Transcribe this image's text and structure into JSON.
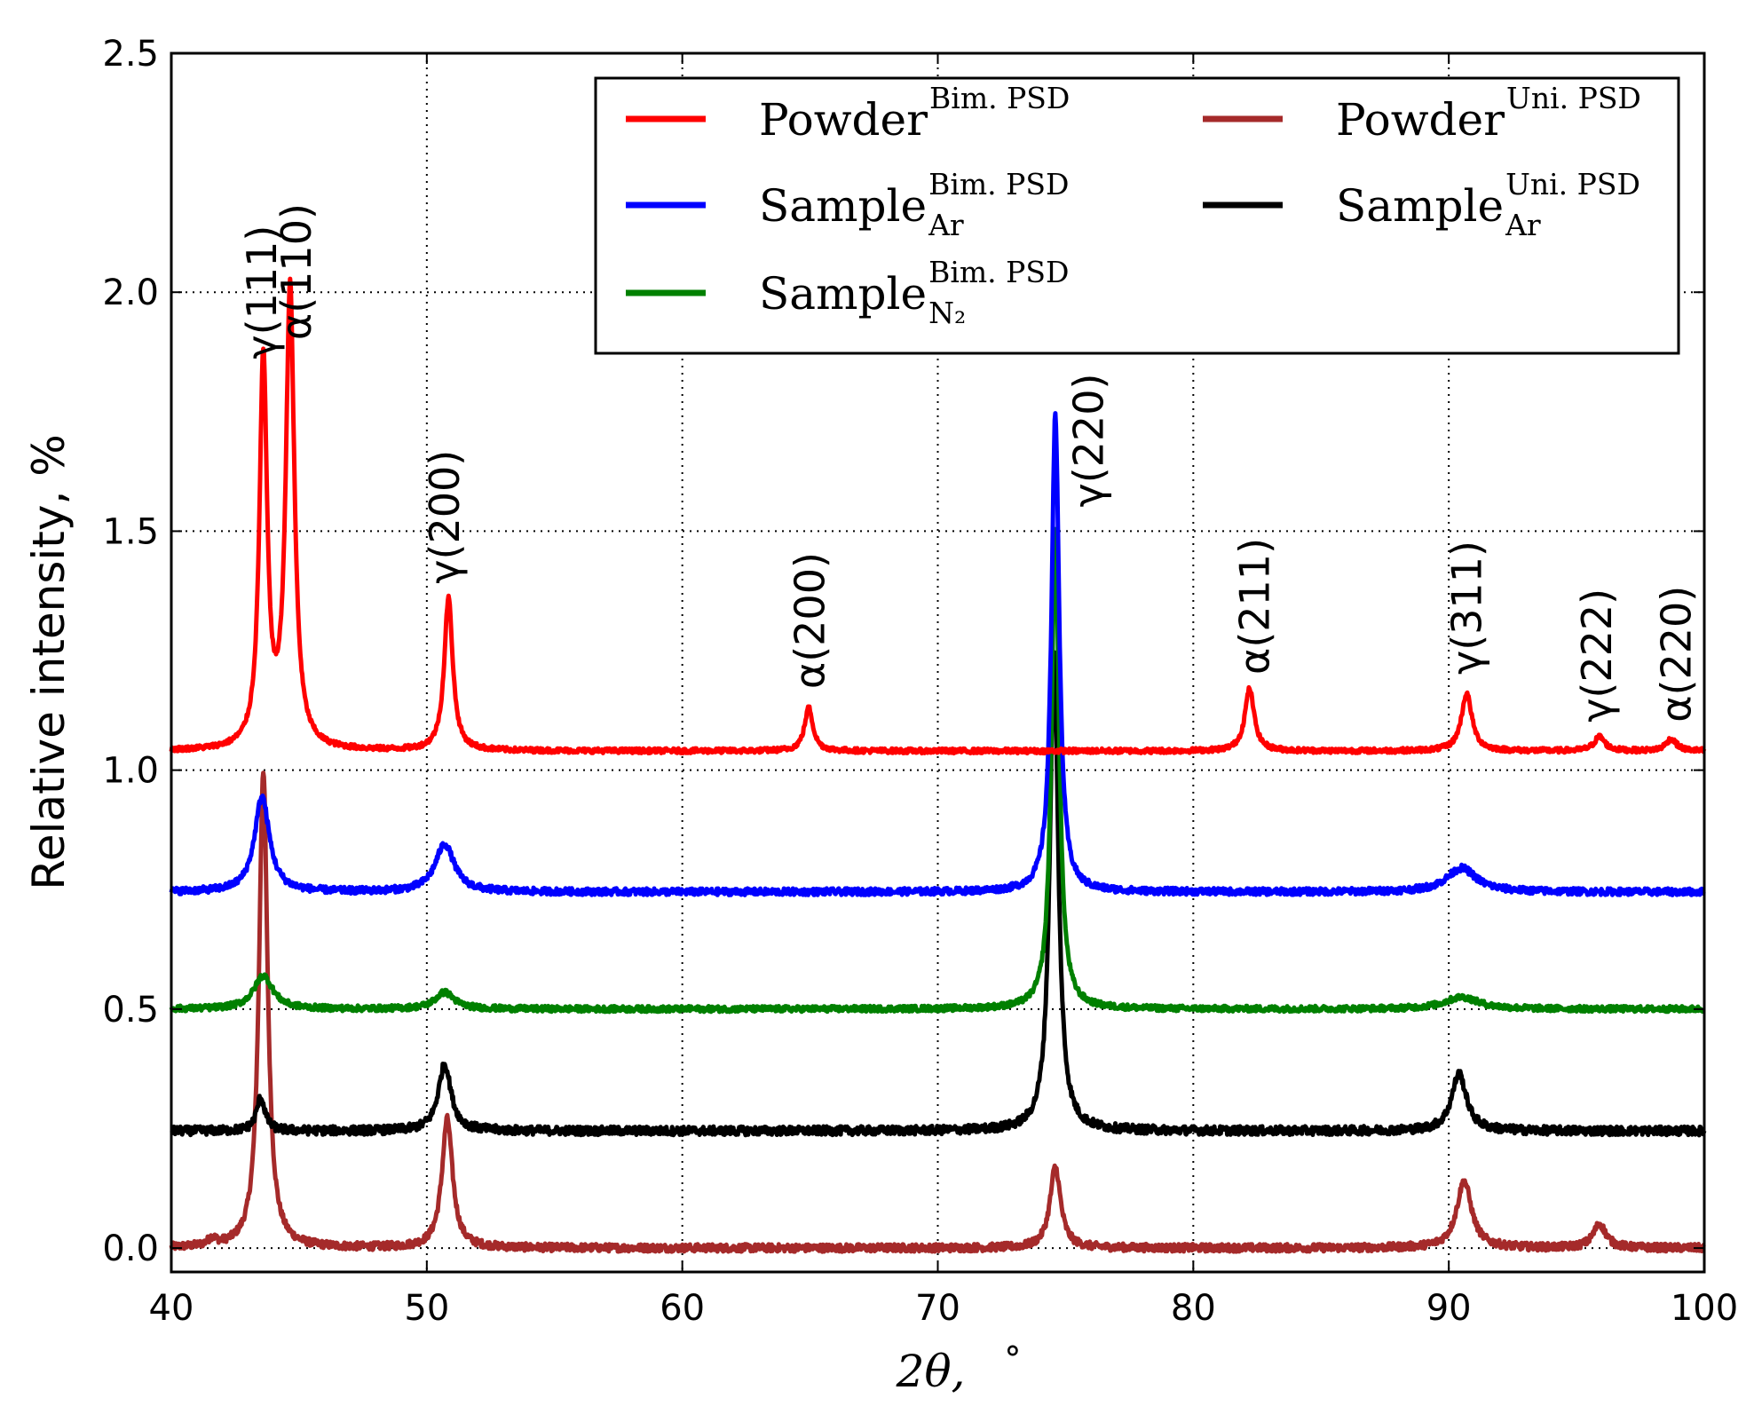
{
  "chart_data": {
    "type": "line",
    "title": "",
    "xlabel": "2θ, °",
    "xlabel_parts": {
      "var": "2θ,",
      "unit": "°"
    },
    "ylabel": "Relative intensity, %",
    "xlim": [
      40,
      100
    ],
    "ylim": [
      -0.05,
      2.5
    ],
    "xticks": [
      40,
      50,
      60,
      70,
      80,
      90,
      100
    ],
    "xtick_labels": [
      "40",
      "50",
      "60",
      "70",
      "80",
      "90",
      "100"
    ],
    "yticks": [
      0.0,
      0.5,
      1.0,
      1.5,
      2.0,
      2.5
    ],
    "ytick_labels": [
      "0.0",
      "0.5",
      "1.0",
      "1.5",
      "2.0",
      "2.5"
    ],
    "grid": "dotted, major ticks",
    "legend_position": "top-right",
    "series": [
      {
        "name": "Powder Bim. PSD",
        "legend": {
          "main": "Powder",
          "sup": "Bim. PSD",
          "sub": ""
        },
        "color": "#ff0000",
        "baseline": 1.04,
        "noise": 0.005,
        "peaks": [
          {
            "x": 43.6,
            "height": 0.81,
            "width": 0.18
          },
          {
            "x": 44.65,
            "height": 0.96,
            "width": 0.2
          },
          {
            "x": 50.85,
            "height": 0.32,
            "width": 0.2
          },
          {
            "x": 64.95,
            "height": 0.09,
            "width": 0.2
          },
          {
            "x": 82.2,
            "height": 0.13,
            "width": 0.22
          },
          {
            "x": 90.7,
            "height": 0.12,
            "width": 0.25
          },
          {
            "x": 95.9,
            "height": 0.03,
            "width": 0.25
          },
          {
            "x": 98.7,
            "height": 0.025,
            "width": 0.25
          }
        ]
      },
      {
        "name": "Sample Ar Bim. PSD",
        "legend": {
          "main": "Sample",
          "sup": "Bim. PSD",
          "sub": "Ar"
        },
        "color": "#0000ff",
        "baseline": 0.745,
        "noise": 0.007,
        "peaks": [
          {
            "x": 43.55,
            "height": 0.2,
            "width": 0.35
          },
          {
            "x": 50.7,
            "height": 0.1,
            "width": 0.45
          },
          {
            "x": 74.6,
            "height": 1.0,
            "width": 0.18
          },
          {
            "x": 90.5,
            "height": 0.05,
            "width": 0.7
          }
        ]
      },
      {
        "name": "Sample N2 Bim. PSD",
        "legend": {
          "main": "Sample",
          "sup": "Bim. PSD",
          "sub": "N₂"
        },
        "color": "#008000",
        "baseline": 0.5,
        "noise": 0.006,
        "peaks": [
          {
            "x": 43.6,
            "height": 0.07,
            "width": 0.45
          },
          {
            "x": 50.7,
            "height": 0.035,
            "width": 0.45
          },
          {
            "x": 74.6,
            "height": 1.0,
            "width": 0.18
          },
          {
            "x": 90.5,
            "height": 0.025,
            "width": 0.8
          }
        ]
      },
      {
        "name": "Powder Uni. PSD",
        "legend": {
          "main": "Powder",
          "sup": "Uni. PSD",
          "sub": ""
        },
        "color": "#a52a2a",
        "baseline": 0.0,
        "noise": 0.008,
        "peaks": [
          {
            "x": 41.6,
            "height": 0.015,
            "width": 0.2
          },
          {
            "x": 43.6,
            "height": 1.0,
            "width": 0.2
          },
          {
            "x": 50.8,
            "height": 0.27,
            "width": 0.25
          },
          {
            "x": 74.6,
            "height": 0.17,
            "width": 0.25
          },
          {
            "x": 90.6,
            "height": 0.14,
            "width": 0.35
          },
          {
            "x": 95.9,
            "height": 0.05,
            "width": 0.3
          }
        ]
      },
      {
        "name": "Sample Ar Uni. PSD",
        "legend": {
          "main": "Sample",
          "sup": "Uni. PSD",
          "sub": "Ar"
        },
        "color": "#000000",
        "baseline": 0.245,
        "noise": 0.009,
        "peaks": [
          {
            "x": 43.5,
            "height": 0.07,
            "width": 0.2
          },
          {
            "x": 50.7,
            "height": 0.14,
            "width": 0.3
          },
          {
            "x": 74.55,
            "height": 1.0,
            "width": 0.2
          },
          {
            "x": 90.4,
            "height": 0.12,
            "width": 0.35
          }
        ]
      }
    ],
    "annotations": [
      {
        "text": "γ(111)",
        "x": 43.55,
        "y": 1.86
      },
      {
        "text": "α(110)",
        "x": 44.9,
        "y": 1.9
      },
      {
        "text": "γ(200)",
        "x": 50.7,
        "y": 1.39
      },
      {
        "text": "α(200)",
        "x": 65.0,
        "y": 1.17
      },
      {
        "text": "γ(220)",
        "x": 75.9,
        "y": 1.55
      },
      {
        "text": "α(211)",
        "x": 82.4,
        "y": 1.2
      },
      {
        "text": "γ(311)",
        "x": 90.7,
        "y": 1.2
      },
      {
        "text": "γ(222)",
        "x": 95.8,
        "y": 1.1
      },
      {
        "text": "α(220)",
        "x": 98.9,
        "y": 1.1
      }
    ]
  }
}
